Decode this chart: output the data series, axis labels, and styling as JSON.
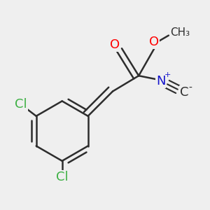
{
  "background_color": "#efefef",
  "bond_color": "#2d2d2d",
  "bond_width": 1.8,
  "atom_colors": {
    "O": "#ff0000",
    "N": "#1515cc",
    "Cl": "#3cb043",
    "default": "#2d2d2d"
  },
  "font_size_atom": 13,
  "font_size_label": 11,
  "font_size_charge": 8
}
